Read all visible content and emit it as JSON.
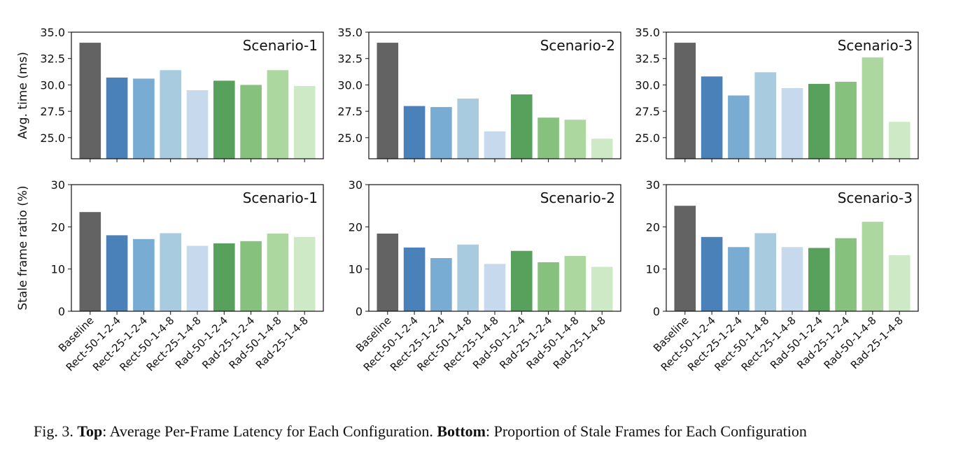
{
  "chart_data": [
    {
      "type": "bar",
      "panel": "top",
      "scenario_label": "Scenario-1",
      "ylabel": "Avg. time (ms)",
      "ylim": [
        23.0,
        35.0
      ],
      "yticks": [
        "25.0",
        "27.5",
        "30.0",
        "32.5",
        "35.0"
      ],
      "categories": [
        "Baseline",
        "Rect-50-1-2-4",
        "Rect-25-1-2-4",
        "Rect-50-1-4-8",
        "Rect-25-1-4-8",
        "Rad-50-1-2-4",
        "Rad-25-1-2-4",
        "Rad-50-1-4-8",
        "Rad-25-1-4-8"
      ],
      "values": [
        34.0,
        30.7,
        30.6,
        31.4,
        29.5,
        30.4,
        30.0,
        31.4,
        29.9
      ]
    },
    {
      "type": "bar",
      "panel": "top",
      "scenario_label": "Scenario-2",
      "ylabel": "",
      "ylim": [
        23.0,
        35.0
      ],
      "yticks": [
        "25.0",
        "27.5",
        "30.0",
        "32.5",
        "35.0"
      ],
      "categories": [
        "Baseline",
        "Rect-50-1-2-4",
        "Rect-25-1-2-4",
        "Rect-50-1-4-8",
        "Rect-25-1-4-8",
        "Rad-50-1-2-4",
        "Rad-25-1-2-4",
        "Rad-50-1-4-8",
        "Rad-25-1-4-8"
      ],
      "values": [
        34.0,
        28.0,
        27.9,
        28.7,
        25.6,
        29.1,
        26.9,
        26.7,
        24.9
      ]
    },
    {
      "type": "bar",
      "panel": "top",
      "scenario_label": "Scenario-3",
      "ylabel": "",
      "ylim": [
        23.0,
        35.0
      ],
      "yticks": [
        "25.0",
        "27.5",
        "30.0",
        "32.5",
        "35.0"
      ],
      "categories": [
        "Baseline",
        "Rect-50-1-2-4",
        "Rect-25-1-2-4",
        "Rect-50-1-4-8",
        "Rect-25-1-4-8",
        "Rad-50-1-2-4",
        "Rad-25-1-2-4",
        "Rad-50-1-4-8",
        "Rad-25-1-4-8"
      ],
      "values": [
        34.0,
        30.8,
        29.0,
        31.2,
        29.7,
        30.1,
        30.3,
        32.6,
        26.5
      ]
    },
    {
      "type": "bar",
      "panel": "bottom",
      "scenario_label": "Scenario-1",
      "ylabel": "Stale frame ratio (%)",
      "ylim": [
        0,
        30
      ],
      "yticks": [
        "0",
        "10",
        "20",
        "30"
      ],
      "categories": [
        "Baseline",
        "Rect-50-1-2-4",
        "Rect-25-1-2-4",
        "Rect-50-1-4-8",
        "Rect-25-1-4-8",
        "Rad-50-1-2-4",
        "Rad-25-1-2-4",
        "Rad-50-1-4-8",
        "Rad-25-1-4-8"
      ],
      "values": [
        23.5,
        18.0,
        17.1,
        18.5,
        15.5,
        16.1,
        16.6,
        18.4,
        17.6
      ]
    },
    {
      "type": "bar",
      "panel": "bottom",
      "scenario_label": "Scenario-2",
      "ylabel": "",
      "ylim": [
        0,
        30
      ],
      "yticks": [
        "0",
        "10",
        "20",
        "30"
      ],
      "categories": [
        "Baseline",
        "Rect-50-1-2-4",
        "Rect-25-1-2-4",
        "Rect-50-1-4-8",
        "Rect-25-1-4-8",
        "Rad-50-1-2-4",
        "Rad-25-1-2-4",
        "Rad-50-1-4-8",
        "Rad-25-1-4-8"
      ],
      "values": [
        18.4,
        15.1,
        12.6,
        15.8,
        11.2,
        14.3,
        11.6,
        13.1,
        10.5
      ]
    },
    {
      "type": "bar",
      "panel": "bottom",
      "scenario_label": "Scenario-3",
      "ylabel": "",
      "ylim": [
        0,
        30
      ],
      "yticks": [
        "0",
        "10",
        "20",
        "30"
      ],
      "categories": [
        "Baseline",
        "Rect-50-1-2-4",
        "Rect-25-1-2-4",
        "Rect-50-1-4-8",
        "Rect-25-1-4-8",
        "Rad-50-1-2-4",
        "Rad-25-1-2-4",
        "Rad-50-1-4-8",
        "Rad-25-1-4-8"
      ],
      "values": [
        25.0,
        17.6,
        15.2,
        18.5,
        15.2,
        15.0,
        17.3,
        21.2,
        13.3
      ]
    }
  ],
  "bar_colors": [
    "#636363",
    "#4a81b9",
    "#78acd3",
    "#a8cbe0",
    "#c7d9ed",
    "#57a15d",
    "#86c17d",
    "#acd79f",
    "#cde9c5"
  ],
  "caption": {
    "prefix": "Fig. 3.  ",
    "top_label": "Top",
    "top_text": ": Average Per-Frame Latency for Each Configuration. ",
    "bottom_label": "Bottom",
    "bottom_text": ": Proportion of Stale Frames for Each Configuration"
  }
}
